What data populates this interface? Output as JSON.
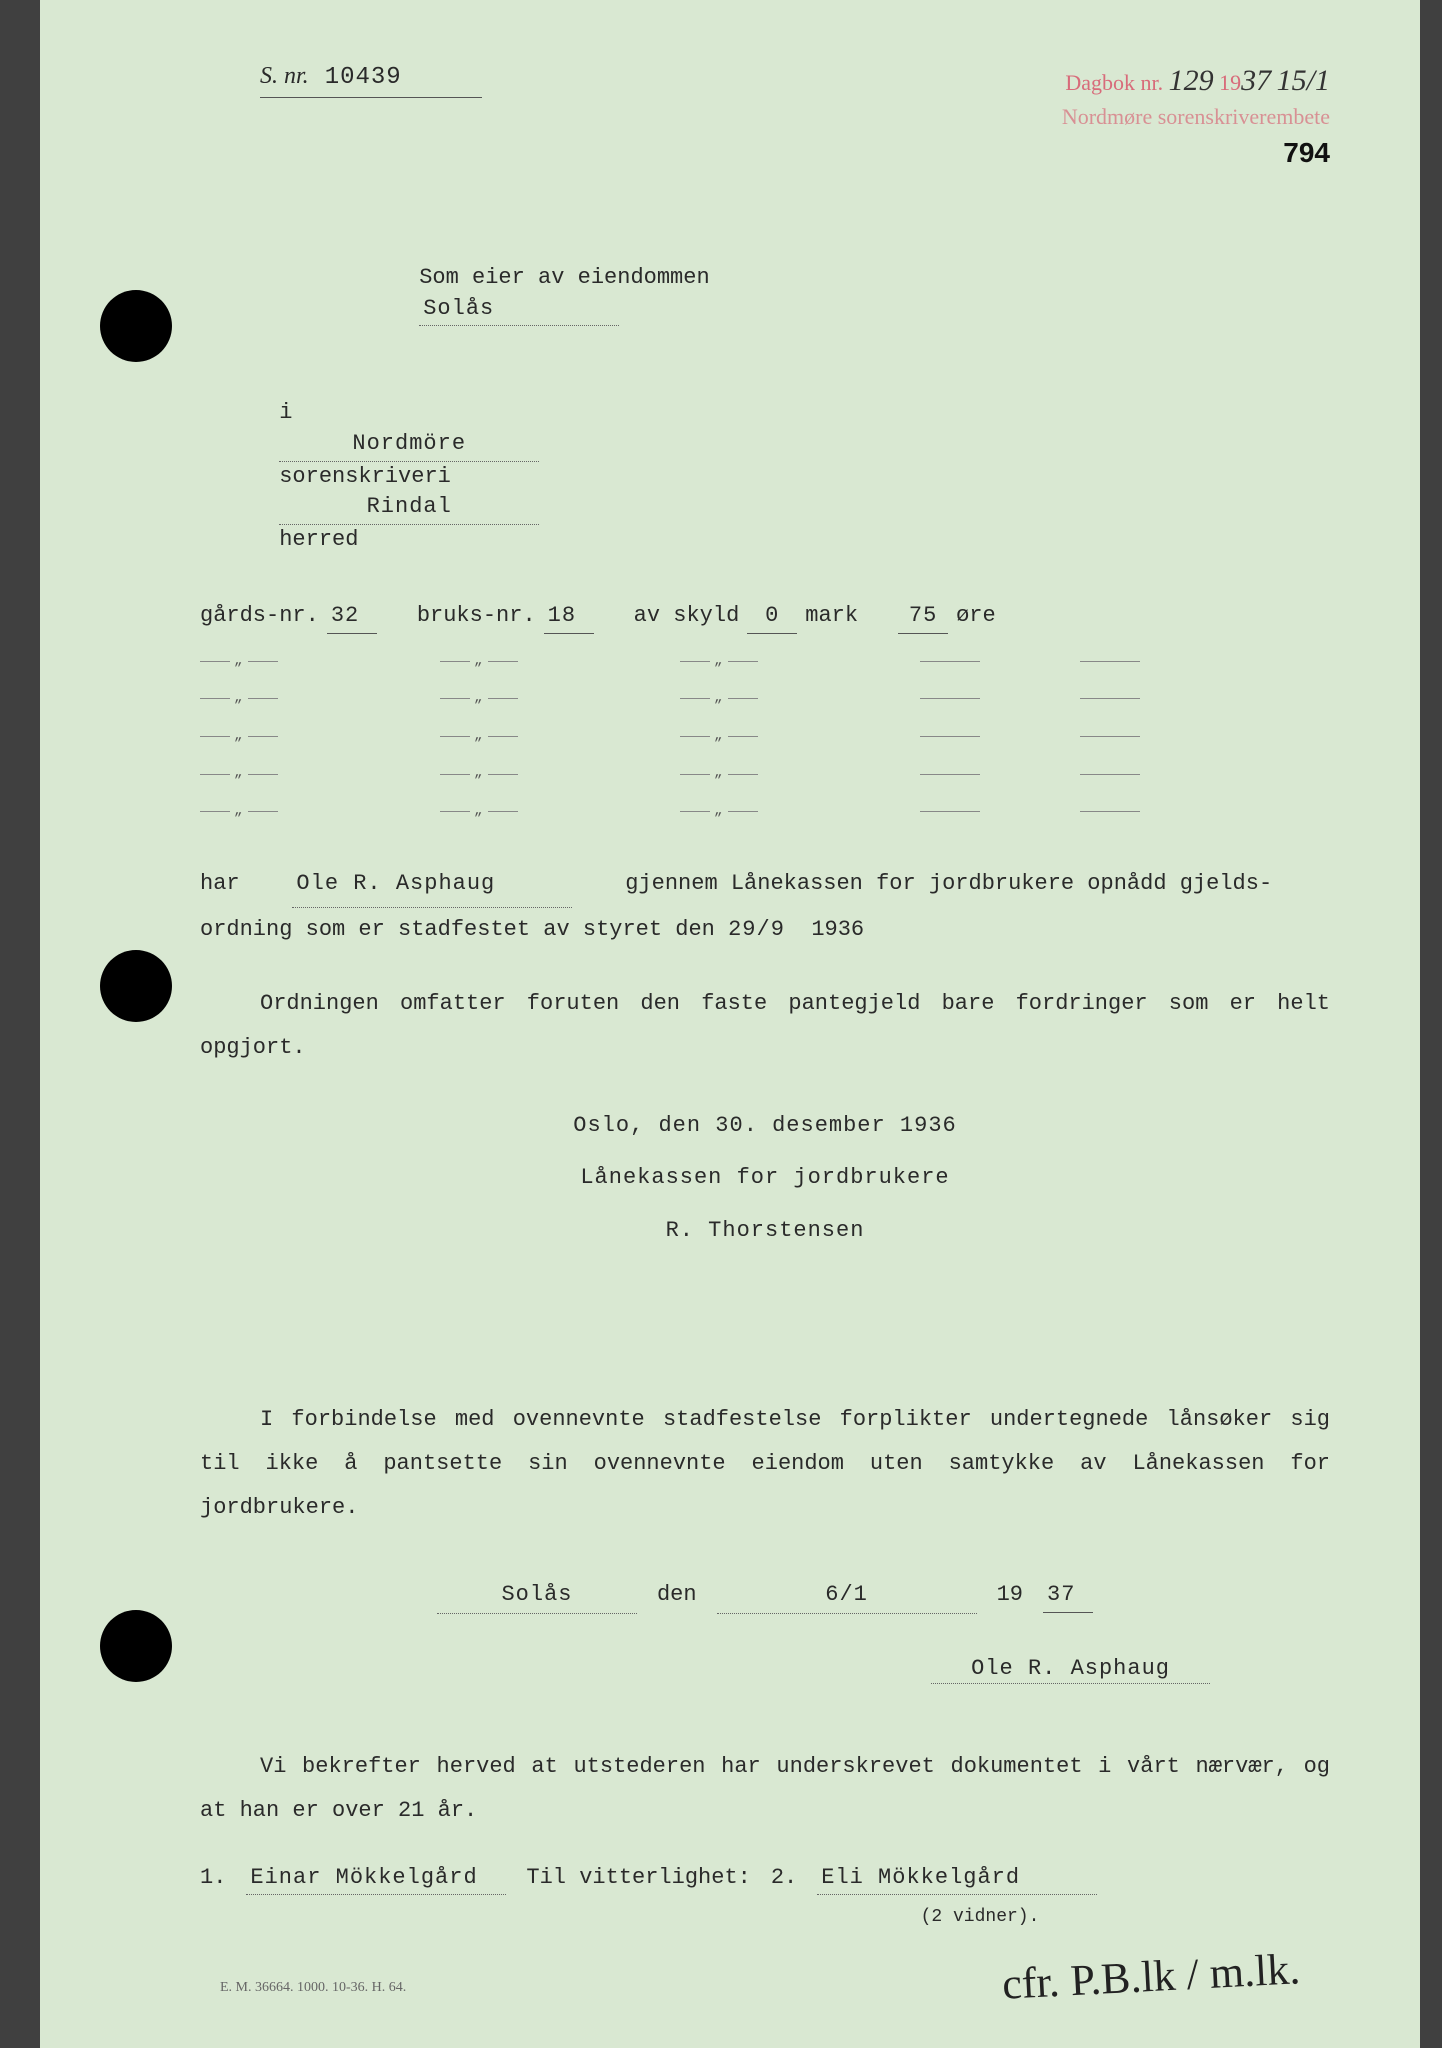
{
  "colors": {
    "page_bg": "#d9e8d2",
    "text": "#2a2a2a",
    "stamp_red": "#d86b7a",
    "handwriting": "#222222",
    "border_bg": "#404040"
  },
  "header": {
    "s_nr_label": "S. nr.",
    "s_nr_value": "10439",
    "stamp_dagbok_label": "Dagbok nr.",
    "stamp_dagbok_value": "129",
    "stamp_year_prefix": "19",
    "stamp_year_hand": "37",
    "stamp_date_hand": "15/1",
    "stamp_line2": "Nordmøre sorenskriverembete",
    "page_number": "794"
  },
  "intro": {
    "line1_prefix": "Som eier av eiendommen",
    "property_name": "Solås",
    "line2_i": "i",
    "region": "Nordmöre",
    "line2_sorenskriveri": "sorenskriveri",
    "herred_name": "Rindal",
    "line2_herred": "herred"
  },
  "property": {
    "gards_label": "gårds-nr.",
    "gards_value": "32",
    "bruks_label": "bruks-nr.",
    "bruks_value": "18",
    "skyld_label": "av skyld",
    "mark_value": "0",
    "mark_label": "mark",
    "ore_value": "75",
    "ore_label": "øre",
    "ditto_rows": 5
  },
  "owner_para": {
    "har": "har",
    "owner_name": "Ole R. Asphaug",
    "text1": "gjennem Lånekassen for jordbrukere opnådd gjelds-",
    "text2": "ordning som er stadfestet av styret den",
    "date_day": "29/9",
    "date_year_prefix": "193",
    "date_year_suffix": "6"
  },
  "ordning_para": "Ordningen omfatter foruten den faste pantegjeld bare fordringer som er helt opgjort.",
  "signature_block": {
    "place_date": "Oslo, den 30. desember 1936",
    "org": "Lånekassen for jordbrukere",
    "signer": "R. Thorstensen"
  },
  "pledge_para": "I forbindelse med ovennevnte stadfestelse forplikter undertegnede lånsøker sig til ikke å pantsette sin ovennevnte eiendom uten samtykke av Lånekassen for jordbrukere.",
  "pledge_sig": {
    "place": "Solås",
    "den_label": "den",
    "date": "6/1",
    "year_prefix": "19",
    "year": "37",
    "signer": "Ole R. Asphaug"
  },
  "witness": {
    "intro": "Vi bekrefter herved at utstederen har underskrevet dokumentet i vårt nærvær, og at han er over 21 år.",
    "w1_num": "1.",
    "w1_name": "Einar Mökkelgård",
    "vitterlighet_label": "Til vitterlighet:",
    "w2_num": "2.",
    "w2_name": "Eli Mökkelgård",
    "caption": "(2 vidner).",
    "hand_signature": "cfr. P.B.lk / m.lk."
  },
  "footer": "E. M. 36664. 1000. 10-36. H. 64."
}
